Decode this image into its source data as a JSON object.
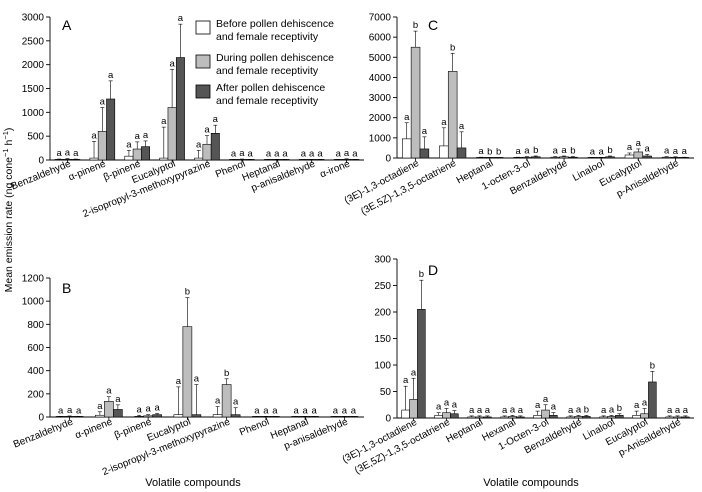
{
  "figure": {
    "x_title": "Volatile compounds",
    "y_title": "Mean emission rate (ng cone",
    "y_title_exp1": "−1",
    "y_title_mid": " h",
    "y_title_exp2": "−1",
    "y_title_end": ")"
  },
  "legend": [
    {
      "line1": "Before pollen dehiscence",
      "line2": "and female receptivity",
      "color": "#ffffff"
    },
    {
      "line1": "During pollen dehiscence",
      "line2": "and female receptivity",
      "color": "#bdbdbd"
    },
    {
      "line1": "After pollen dehiscence",
      "line2": "and female receptivity",
      "color": "#555555"
    }
  ],
  "chart_data": [
    {
      "panel": "A",
      "type": "bar",
      "ylim": [
        0,
        3000
      ],
      "yticks": [
        0,
        500,
        1000,
        1500,
        2000,
        2500,
        3000
      ],
      "categories": [
        "Benzaldehyde",
        "α-pinene",
        "β-pinene",
        "Eucalyptol",
        "2-isopropyl-3-methoxypyrazine",
        "Phenol",
        "Heptanal",
        "p-anisaldehyde",
        "α-irone"
      ],
      "series": [
        {
          "name": "Before pollen dehiscence and female receptivity",
          "values": [
            10,
            40,
            80,
            40,
            40,
            5,
            5,
            5,
            5
          ],
          "errors": [
            10,
            350,
            120,
            650,
            160,
            5,
            5,
            5,
            5
          ],
          "letters": [
            "a",
            "a",
            "a",
            "a",
            "a",
            "a",
            "a",
            "a",
            "a"
          ]
        },
        {
          "name": "During pollen dehiscence and female receptivity",
          "values": [
            15,
            600,
            230,
            1100,
            330,
            10,
            10,
            10,
            15
          ],
          "errors": [
            15,
            500,
            150,
            800,
            180,
            10,
            5,
            5,
            10
          ],
          "letters": [
            "a",
            "a",
            "a",
            "a",
            "a",
            "a",
            "a",
            "a",
            "a"
          ]
        },
        {
          "name": "After pollen dehiscence and female receptivity",
          "values": [
            10,
            1280,
            280,
            2150,
            560,
            10,
            10,
            10,
            10
          ],
          "errors": [
            10,
            380,
            120,
            700,
            170,
            5,
            5,
            5,
            5
          ],
          "letters": [
            "a",
            "a",
            "a",
            "a",
            "a",
            "a",
            "a",
            "a",
            "a"
          ]
        }
      ]
    },
    {
      "panel": "B",
      "type": "bar",
      "ylim": [
        0,
        1200
      ],
      "yticks": [
        0,
        200,
        400,
        600,
        800,
        1000,
        1200
      ],
      "categories": [
        "Benzaldehyde",
        "α-pinene",
        "β-pinene",
        "Eucalyptol",
        "2-isopropyl-3-methoxypyrazine",
        "Phenol",
        "Heptanal",
        "p-anisaldehyde"
      ],
      "series": [
        {
          "name": "Before pollen dehiscence and female receptivity",
          "values": [
            3,
            15,
            5,
            20,
            20,
            2,
            2,
            2
          ],
          "errors": [
            3,
            30,
            10,
            240,
            70,
            2,
            2,
            2
          ],
          "letters": [
            "a",
            "a",
            "a",
            "a",
            "a",
            "a",
            "a",
            "a"
          ]
        },
        {
          "name": "During pollen dehiscence and female receptivity",
          "values": [
            5,
            135,
            10,
            780,
            280,
            3,
            3,
            3
          ],
          "errors": [
            4,
            40,
            10,
            250,
            50,
            3,
            3,
            3
          ],
          "letters": [
            "a",
            "a",
            "a",
            "b",
            "b",
            "a",
            "a",
            "a"
          ]
        },
        {
          "name": "After pollen dehiscence and female receptivity",
          "values": [
            3,
            65,
            20,
            20,
            20,
            2,
            2,
            2
          ],
          "errors": [
            3,
            40,
            10,
            260,
            60,
            2,
            2,
            2
          ],
          "letters": [
            "a",
            "a",
            "a",
            "a",
            "a",
            "a",
            "a",
            "a"
          ]
        }
      ]
    },
    {
      "panel": "C",
      "type": "bar",
      "ylim": [
        0,
        7000
      ],
      "yticks": [
        0,
        1000,
        2000,
        3000,
        4000,
        5000,
        6000,
        7000
      ],
      "categories": [
        "(3E)-1,3-octadiene",
        "(3E,5Z)-1,3,5-octatriene",
        "Heptanal",
        "1-octen-3-ol",
        "Benzaldehyde",
        "Linalool",
        "Eucalyptol",
        "p-Anisaldehyde"
      ],
      "series": [
        {
          "name": "Before pollen dehiscence and female receptivity",
          "values": [
            950,
            600,
            20,
            20,
            40,
            20,
            150,
            40
          ],
          "errors": [
            800,
            900,
            20,
            20,
            30,
            15,
            100,
            30
          ],
          "letters": [
            "a",
            "a",
            "a",
            "a",
            "a",
            "a",
            "a",
            "a"
          ]
        },
        {
          "name": "During pollen dehiscence and female receptivity",
          "values": [
            5500,
            4300,
            10,
            40,
            60,
            20,
            300,
            30
          ],
          "errors": [
            800,
            900,
            10,
            30,
            40,
            15,
            150,
            30
          ],
          "letters": [
            "b",
            "b",
            "b",
            "a",
            "a",
            "a",
            "a",
            "a"
          ]
        },
        {
          "name": "After pollen dehiscence and female receptivity",
          "values": [
            450,
            500,
            10,
            60,
            40,
            60,
            100,
            20
          ],
          "errors": [
            600,
            800,
            10,
            40,
            30,
            40,
            80,
            20
          ],
          "letters": [
            "a",
            "a",
            "b",
            "b",
            "b",
            "b",
            "a",
            "a"
          ]
        }
      ]
    },
    {
      "panel": "D",
      "type": "bar",
      "ylim": [
        0,
        300
      ],
      "yticks": [
        0,
        50,
        100,
        150,
        200,
        250,
        300
      ],
      "categories": [
        "(3E)-1,3-octadiene",
        "(3E,5Z)-1,3,5-octatriene",
        "Heptanal",
        "Hexanal",
        "1-Octen-3-ol",
        "Benzaldehyde",
        "Linalool",
        "Eucalyptol",
        "p-Anisaldehyde"
      ],
      "series": [
        {
          "name": "Before pollen dehiscence and female receptivity",
          "values": [
            15,
            5,
            2,
            2,
            5,
            2,
            2,
            5,
            2
          ],
          "errors": [
            45,
            5,
            2,
            2,
            8,
            2,
            2,
            8,
            2
          ],
          "letters": [
            "a",
            "a",
            "a",
            "a",
            "a",
            "a",
            "a",
            "a",
            "a"
          ]
        },
        {
          "name": "During pollen dehiscence and female receptivity",
          "values": [
            35,
            10,
            2,
            3,
            15,
            3,
            3,
            8,
            2
          ],
          "errors": [
            40,
            8,
            2,
            2,
            10,
            2,
            2,
            10,
            2
          ],
          "letters": [
            "a",
            "a",
            "a",
            "a",
            "a",
            "a",
            "a",
            "a",
            "a"
          ]
        },
        {
          "name": "After pollen dehiscence and female receptivity",
          "values": [
            205,
            8,
            2,
            2,
            5,
            3,
            5,
            68,
            2
          ],
          "errors": [
            55,
            6,
            2,
            2,
            5,
            2,
            3,
            20,
            2
          ],
          "letters": [
            "b",
            "a",
            "a",
            "a",
            "a",
            "b",
            "b",
            "b",
            "a"
          ]
        }
      ]
    }
  ]
}
